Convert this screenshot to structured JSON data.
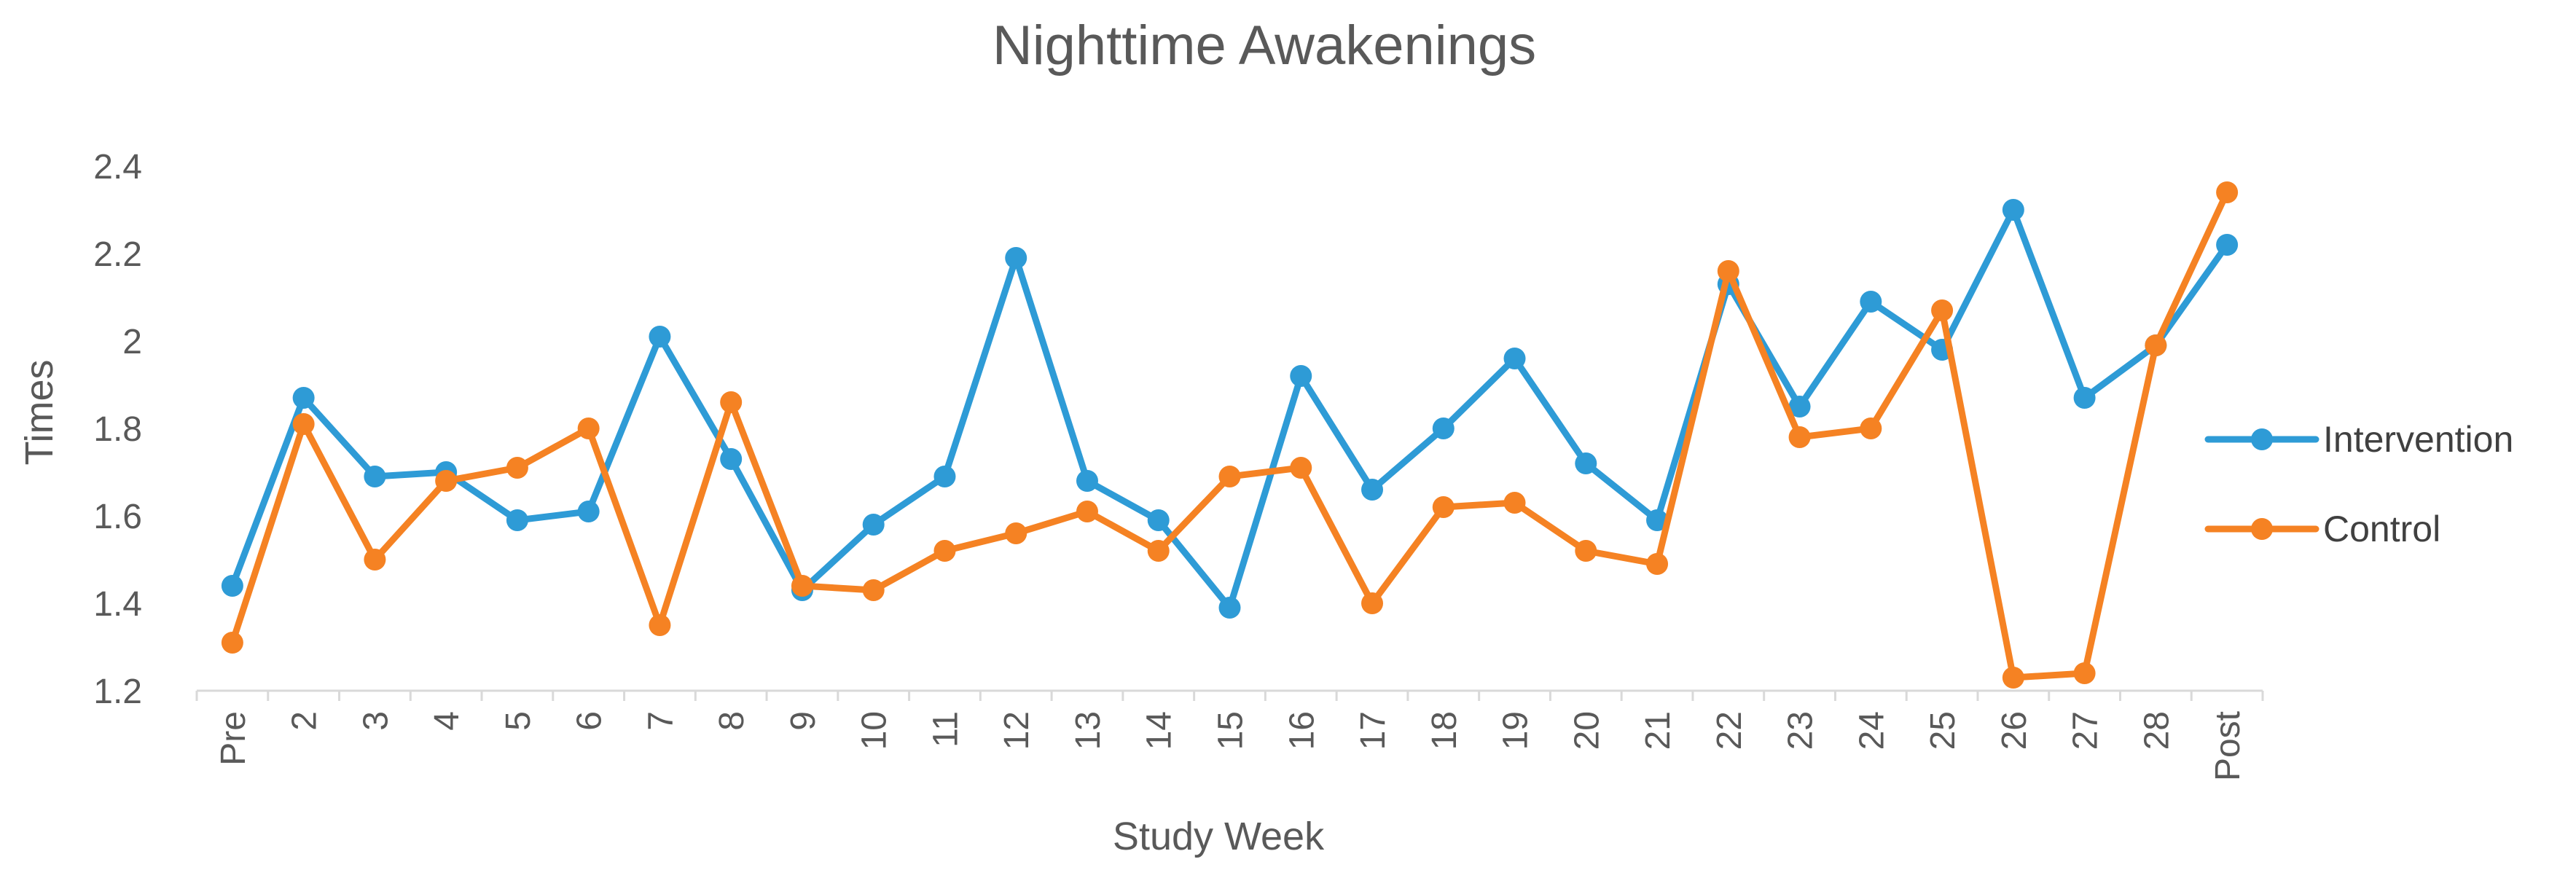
{
  "chart_data": {
    "type": "line",
    "title": "Nighttime Awakenings",
    "xlabel": "Study Week",
    "ylabel": "Times",
    "ylim": [
      1.2,
      2.4
    ],
    "yticks": [
      "1.2",
      "1.4",
      "1.6",
      "1.8",
      "2",
      "2.2",
      "2.4"
    ],
    "grid": false,
    "legend_position": "right",
    "categories": [
      "Pre",
      "2",
      "3",
      "4",
      "5",
      "6",
      "7",
      "8",
      "9",
      "10",
      "11",
      "12",
      "13",
      "14",
      "15",
      "16",
      "17",
      "18",
      "19",
      "20",
      "21",
      "22",
      "23",
      "24",
      "25",
      "26",
      "27",
      "28",
      "Post"
    ],
    "series": [
      {
        "name": "Intervention",
        "color": "#2E9BD6",
        "values": [
          1.44,
          1.87,
          1.69,
          1.7,
          1.59,
          1.61,
          2.01,
          1.73,
          1.43,
          1.58,
          1.69,
          2.19,
          1.68,
          1.59,
          1.39,
          1.92,
          1.66,
          1.8,
          1.96,
          1.72,
          1.59,
          2.13,
          1.85,
          2.09,
          1.98,
          2.3,
          1.87,
          1.99,
          2.22
        ]
      },
      {
        "name": "Control",
        "color": "#F58223",
        "values": [
          1.31,
          1.81,
          1.5,
          1.68,
          1.71,
          1.8,
          1.35,
          1.86,
          1.44,
          1.43,
          1.52,
          1.56,
          1.61,
          1.52,
          1.69,
          1.71,
          1.4,
          1.62,
          1.63,
          1.52,
          1.49,
          2.16,
          1.78,
          1.8,
          2.07,
          1.23,
          1.24,
          1.99,
          2.34
        ]
      }
    ]
  }
}
